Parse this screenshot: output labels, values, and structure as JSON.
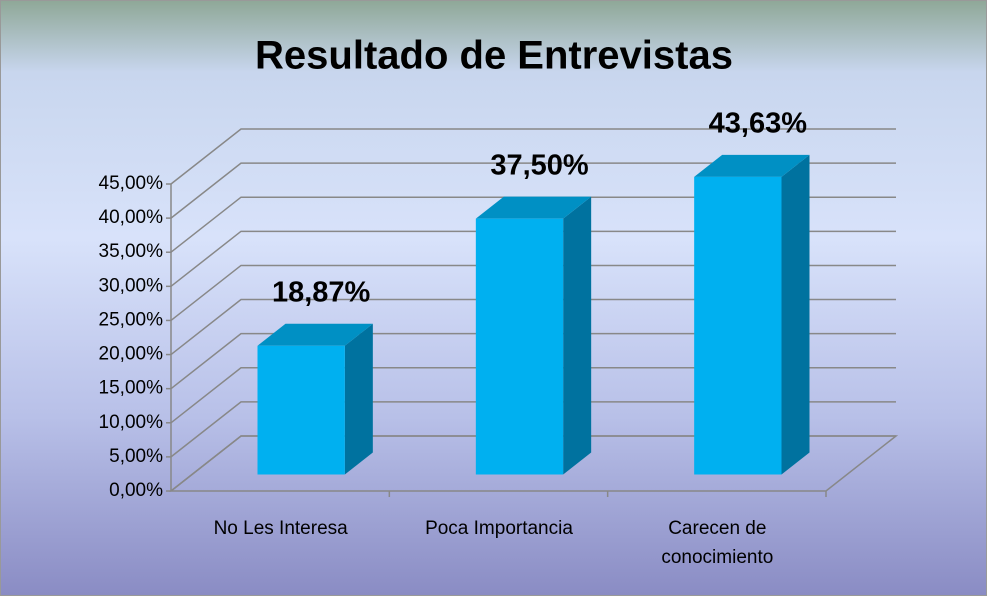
{
  "chart_data": {
    "type": "bar3d",
    "title": "Resultado de Entrevistas",
    "categories": [
      "No Les Interesa",
      "Poca Importancia",
      "Carecen de conocimiento"
    ],
    "values": [
      18.87,
      37.5,
      43.63
    ],
    "value_labels": [
      "18,87%",
      "37,50%",
      "43,63%"
    ],
    "color": "#00b0f0",
    "ylim": [
      0,
      45
    ],
    "yticks": [
      {
        "value": 0,
        "label": "0,00%"
      },
      {
        "value": 5,
        "label": "5,00%"
      },
      {
        "value": 10,
        "label": "10,00%"
      },
      {
        "value": 15,
        "label": "15,00%"
      },
      {
        "value": 20,
        "label": "20,00%"
      },
      {
        "value": 25,
        "label": "25,00%"
      },
      {
        "value": 30,
        "label": "30,00%"
      },
      {
        "value": 35,
        "label": "35,00%"
      },
      {
        "value": 40,
        "label": "40,00%"
      },
      {
        "value": 45,
        "label": "45,00%"
      }
    ],
    "grid": true
  }
}
